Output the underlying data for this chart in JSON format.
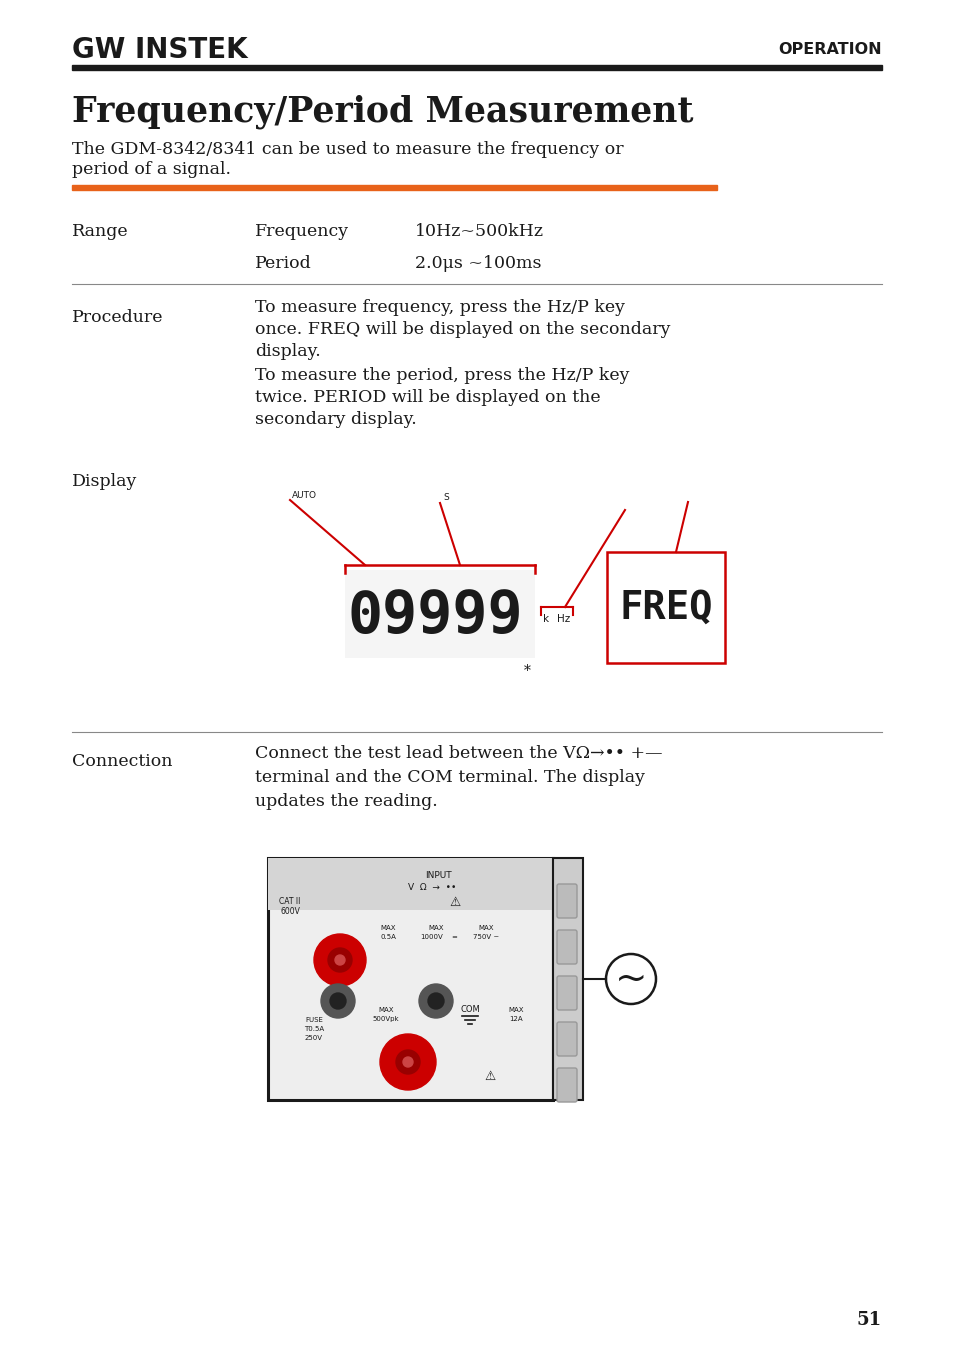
{
  "page_bg": "#ffffff",
  "logo_text": "GW INSTEK",
  "operation_label": "OPERATION",
  "title": "Frequency/Period Measurement",
  "subtitle_line1": "The GDM-8342/8341 can be used to measure the frequency or",
  "subtitle_line2": "period of a signal.",
  "orange_line_color": "#e8621a",
  "text_color": "#1a1a1a",
  "gray_color": "#888888",
  "red_color": "#cc0000",
  "range_label": "Range",
  "freq_label": "Frequency",
  "freq_value": "10Hz~500kHz",
  "period_label": "Period",
  "period_value": "2.0μs ~100ms",
  "procedure_label": "Procedure",
  "proc1_l1": "To measure frequency, press the Hz/P key",
  "proc1_l2": "once. FREQ will be displayed on the secondary",
  "proc1_l3": "display.",
  "proc2_l1": "To measure the period, press the Hz/P key",
  "proc2_l2": "twice. PERIOD will be displayed on the",
  "proc2_l3": "secondary display.",
  "display_label": "Display",
  "display_digits": "09999",
  "display_freq": "FREQ",
  "auto_label": "AUTO",
  "s_label": "S",
  "k_label": "k",
  "hz_label": "Hz",
  "star_label": "*",
  "connection_label": "Connection",
  "conn_l1": "Connect the test lead between the VΩ→•• +—",
  "conn_l2": "terminal and the COM terminal. The display",
  "conn_l3": "updates the reading.",
  "page_number": "51",
  "input_label": "INPUT",
  "v_omega_label": "V  Ω  →  ••",
  "cat_label": "CAT II",
  "v600_label": "600V",
  "max_05a": "MAX\n0.5A",
  "max_1000v": "MAX\n1000V",
  "max_750v": "MAX\n750V ~",
  "max_500vpk": "MAX\n500Vpk",
  "com_label": "COM",
  "fuse_label": "FUSE\nT0.5A\n250V",
  "max_12a": "MAX\n12A"
}
